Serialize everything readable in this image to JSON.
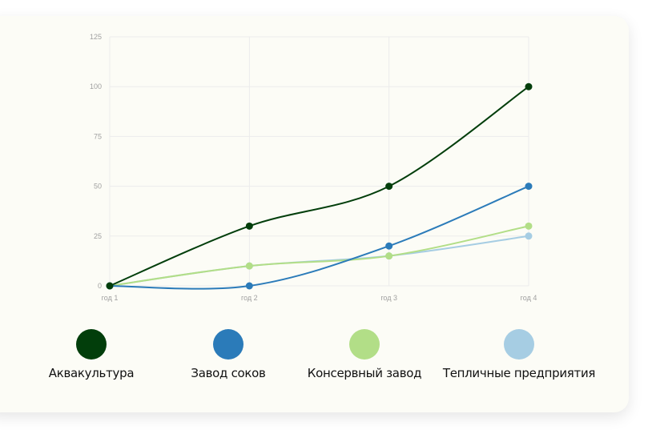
{
  "chart_data": {
    "type": "line",
    "categories": [
      "год 1",
      "год 2",
      "год 3",
      "год 4"
    ],
    "yticks": [
      0,
      25,
      50,
      75,
      100,
      125
    ],
    "ylim": [
      0,
      125
    ],
    "grid": true,
    "legend_placement": "bottom",
    "series": [
      {
        "name": "Аквакультура",
        "values": [
          0,
          30,
          50,
          100
        ],
        "color": "#023e0b"
      },
      {
        "name": "Завод соков",
        "values": [
          0,
          0,
          20,
          50
        ],
        "color": "#2b7bb9"
      },
      {
        "name": "Консервный завод",
        "values": [
          0,
          10,
          15,
          30
        ],
        "color": "#b2de87"
      },
      {
        "name": "Тепличные предприятия",
        "values": [
          0,
          10,
          15,
          25
        ],
        "color": "#a6cde3"
      }
    ]
  }
}
